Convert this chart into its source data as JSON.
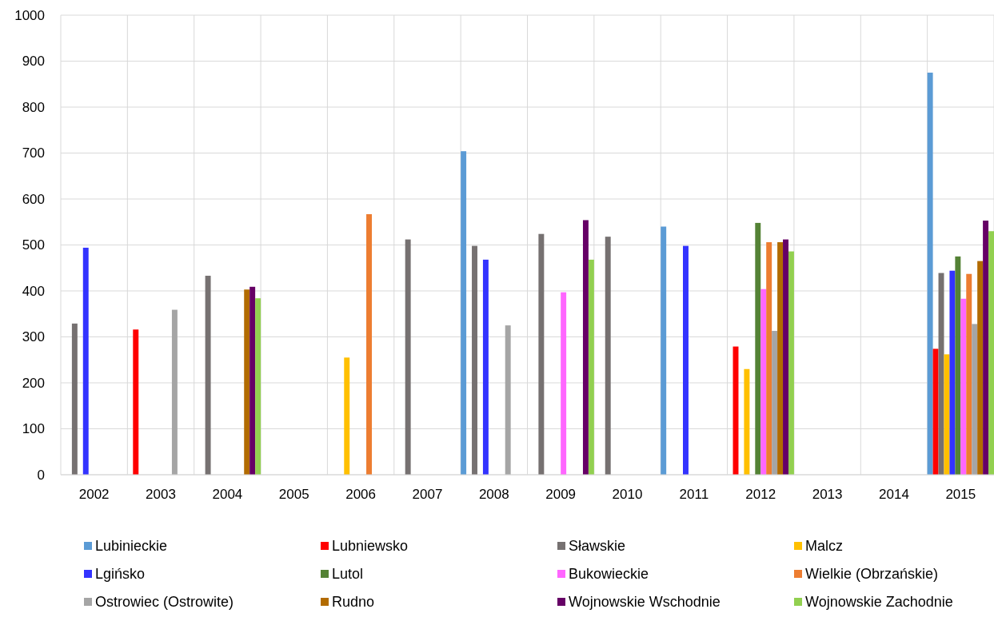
{
  "chart_data": {
    "type": "bar",
    "categories": [
      "2002",
      "2003",
      "2004",
      "2005",
      "2006",
      "2007",
      "2008",
      "2009",
      "2010",
      "2011",
      "2012",
      "2013",
      "2014",
      "2015"
    ],
    "series": [
      {
        "name": "Lubinieckie",
        "color": "#5b9bd5",
        "values": [
          null,
          null,
          null,
          null,
          null,
          null,
          704,
          null,
          null,
          540,
          null,
          null,
          null,
          875
        ]
      },
      {
        "name": "Lubniewsko",
        "color": "#ff0000",
        "values": [
          null,
          316,
          null,
          null,
          null,
          null,
          null,
          null,
          null,
          null,
          279,
          null,
          null,
          274
        ]
      },
      {
        "name": "Sławskie",
        "color": "#767171",
        "values": [
          329,
          null,
          433,
          null,
          null,
          512,
          498,
          524,
          518,
          null,
          null,
          null,
          null,
          439
        ]
      },
      {
        "name": "Malcz",
        "color": "#ffc000",
        "values": [
          null,
          null,
          null,
          null,
          255,
          null,
          null,
          null,
          null,
          null,
          230,
          null,
          null,
          262
        ]
      },
      {
        "name": "Lgińsko",
        "color": "#3333ff",
        "values": [
          494,
          null,
          null,
          null,
          null,
          null,
          468,
          null,
          null,
          498,
          null,
          null,
          null,
          444
        ]
      },
      {
        "name": "Lutol",
        "color": "#548235",
        "values": [
          null,
          null,
          null,
          null,
          null,
          null,
          null,
          null,
          null,
          null,
          548,
          null,
          null,
          475
        ]
      },
      {
        "name": "Bukowieckie",
        "color": "#ff66ff",
        "values": [
          null,
          null,
          null,
          null,
          null,
          null,
          null,
          397,
          null,
          null,
          404,
          null,
          null,
          383
        ]
      },
      {
        "name": "Wielkie (Obrzańskie)",
        "color": "#ed7d31",
        "values": [
          null,
          null,
          null,
          null,
          567,
          null,
          null,
          null,
          null,
          null,
          506,
          null,
          null,
          437
        ]
      },
      {
        "name": "Ostrowiec (Ostrowite)",
        "color": "#a5a5a5",
        "values": [
          null,
          359,
          null,
          null,
          null,
          null,
          325,
          null,
          null,
          null,
          313,
          null,
          null,
          328
        ]
      },
      {
        "name": "Rudno",
        "color": "#b26b00",
        "values": [
          null,
          null,
          403,
          null,
          null,
          null,
          null,
          null,
          null,
          null,
          506,
          null,
          null,
          465
        ]
      },
      {
        "name": "Wojnowskie Wschodnie",
        "color": "#660066",
        "values": [
          null,
          null,
          409,
          null,
          null,
          null,
          null,
          554,
          null,
          null,
          512,
          null,
          null,
          553
        ]
      },
      {
        "name": "Wojnowskie Zachodnie",
        "color": "#92d050",
        "values": [
          null,
          null,
          384,
          null,
          null,
          null,
          null,
          468,
          null,
          null,
          486,
          null,
          null,
          530
        ]
      }
    ],
    "ylim": [
      0,
      1000
    ],
    "yticks": [
      0,
      100,
      200,
      300,
      400,
      500,
      600,
      700,
      800,
      900,
      1000
    ],
    "grid": true,
    "legend": "bottom"
  }
}
